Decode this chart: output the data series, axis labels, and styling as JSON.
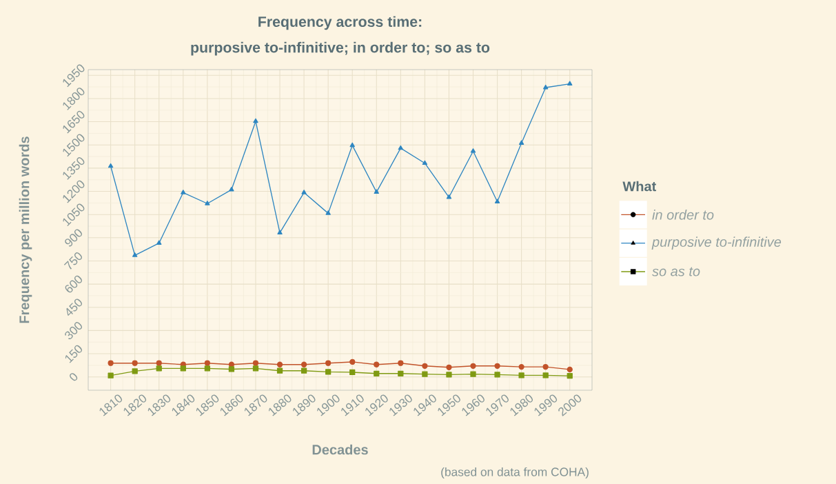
{
  "chart_data": {
    "type": "line",
    "title": "Frequency across time:",
    "subtitle": "purposive to-infinitive; in order to; so as to",
    "xlabel": "Decades",
    "ylabel": "Frequency per million words",
    "legend_title": "What",
    "annotations": [
      "(based on data from COHA)"
    ],
    "categories": [
      "1810",
      "1820",
      "1830",
      "1840",
      "1850",
      "1860",
      "1870",
      "1880",
      "1890",
      "1900",
      "1910",
      "1920",
      "1930",
      "1940",
      "1950",
      "1960",
      "1970",
      "1980",
      "1990",
      "2000"
    ],
    "series": [
      {
        "name": "in order to",
        "color": "#c2532a",
        "marker": "circle",
        "values": [
          89,
          89,
          89,
          80,
          89,
          80,
          89,
          80,
          80,
          89,
          97,
          80,
          89,
          71,
          62,
          71,
          71,
          65,
          65,
          48
        ]
      },
      {
        "name": "purposive to-infinitive",
        "color": "#2e86c1",
        "marker": "triangle",
        "values": [
          1363,
          786,
          865,
          1192,
          1121,
          1211,
          1653,
          932,
          1192,
          1058,
          1497,
          1195,
          1479,
          1382,
          1162,
          1460,
          1133,
          1512,
          1871,
          1895
        ]
      },
      {
        "name": "so as to",
        "color": "#7f9a12",
        "marker": "square",
        "values": [
          9,
          37,
          55,
          55,
          55,
          50,
          55,
          40,
          40,
          33,
          30,
          22,
          22,
          18,
          15,
          18,
          15,
          10,
          10,
          7
        ]
      }
    ],
    "ylim": [
      -86,
      1987
    ],
    "yticks": [
      0,
      150,
      300,
      450,
      600,
      750,
      900,
      1050,
      1200,
      1350,
      1500,
      1650,
      1800,
      1950
    ],
    "grid": true,
    "legend": "right"
  }
}
